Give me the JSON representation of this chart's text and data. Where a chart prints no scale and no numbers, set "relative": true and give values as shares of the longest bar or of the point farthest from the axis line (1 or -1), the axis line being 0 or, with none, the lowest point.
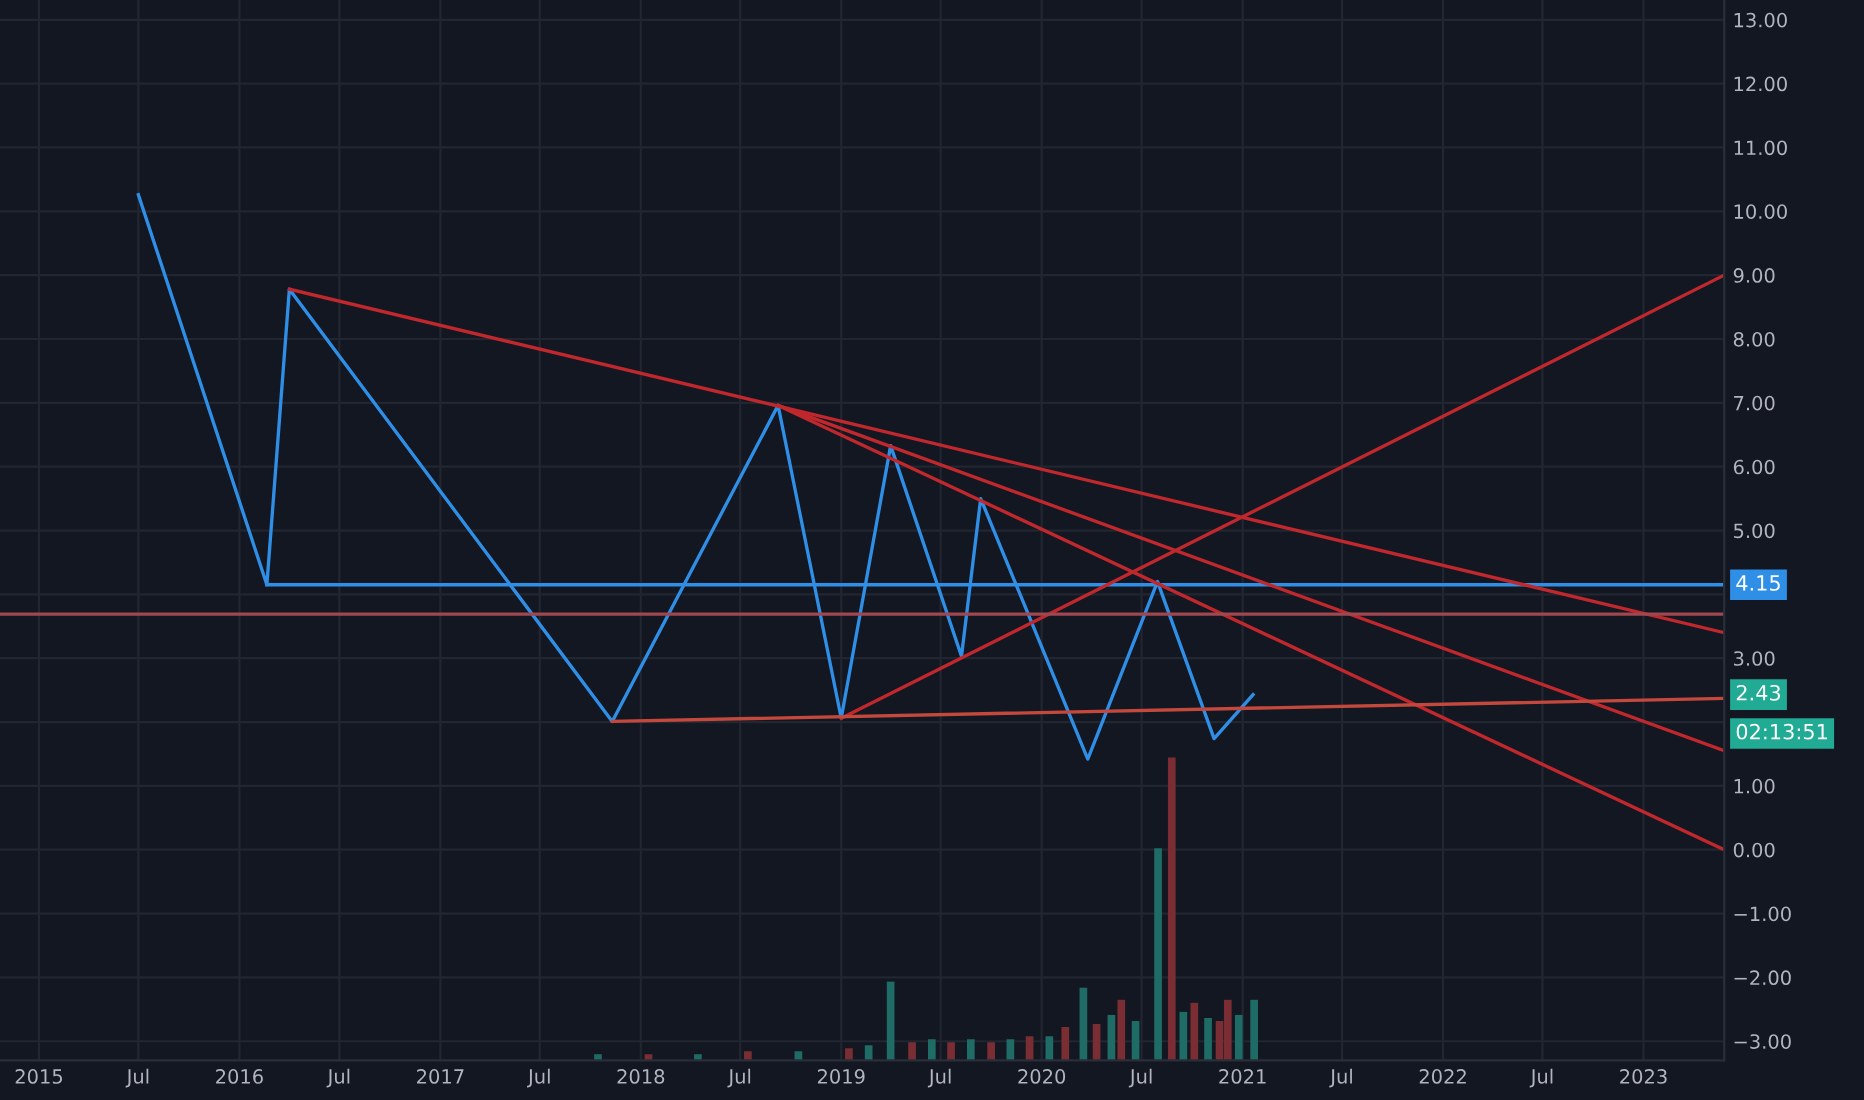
{
  "chart_data": [
    {
      "type": "line",
      "xlim": [
        "2014-10-22",
        "2023-05-28"
      ],
      "ylim": [
        -3.3,
        13.31
      ],
      "xticks": [
        {
          "value": "2015-01",
          "label": "2015"
        },
        {
          "value": "2015-07",
          "label": "Jul"
        },
        {
          "value": "2016-01",
          "label": "2016"
        },
        {
          "value": "2016-07",
          "label": "Jul"
        },
        {
          "value": "2017-01",
          "label": "2017"
        },
        {
          "value": "2017-07",
          "label": "Jul"
        },
        {
          "value": "2018-01",
          "label": "2018"
        },
        {
          "value": "2018-07",
          "label": "Jul"
        },
        {
          "value": "2019-01",
          "label": "2019"
        },
        {
          "value": "2019-07",
          "label": "Jul"
        },
        {
          "value": "2020-01",
          "label": "2020"
        },
        {
          "value": "2020-07",
          "label": "Jul"
        },
        {
          "value": "2021-01",
          "label": "2021"
        },
        {
          "value": "2021-07",
          "label": "Jul"
        },
        {
          "value": "2022-01",
          "label": "2022"
        },
        {
          "value": "2022-07",
          "label": "Jul"
        },
        {
          "value": "2023-01",
          "label": "2023"
        }
      ],
      "yticks": [
        {
          "value": 13,
          "label": "13.00"
        },
        {
          "value": 12,
          "label": "12.00"
        },
        {
          "value": 11,
          "label": "11.00"
        },
        {
          "value": 10,
          "label": "10.00"
        },
        {
          "value": 9,
          "label": "9.00"
        },
        {
          "value": 8,
          "label": "8.00"
        },
        {
          "value": 7,
          "label": "7.00"
        },
        {
          "value": 6,
          "label": "6.00"
        },
        {
          "value": 5,
          "label": "5.00"
        },
        {
          "value": 4,
          "label": null
        },
        {
          "value": 3,
          "label": "3.00"
        },
        {
          "value": 2,
          "label": null
        },
        {
          "value": 1,
          "label": "1.00"
        },
        {
          "value": 0,
          "label": "0.00"
        },
        {
          "value": -1,
          "label": "−1.00"
        },
        {
          "value": -2,
          "label": "−2.00"
        },
        {
          "value": -3,
          "label": "−3.00"
        }
      ],
      "grid": true,
      "legend": false,
      "marker": "none",
      "line_style": "solid",
      "series": [
        {
          "color": "#2f8fe6",
          "x": [
            "2015-07-01",
            "2016-02-20",
            "2016-04-01",
            "2017-11-10",
            "2018-09-08",
            "2019-01-01",
            "2019-04-01",
            "2019-08-08",
            "2019-09-12",
            "2020-03-25",
            "2020-07-30",
            "2020-11-10",
            "2021-01-20"
          ],
          "values": [
            10.26,
            4.15,
            8.78,
            2.01,
            6.96,
            2.06,
            6.33,
            3.03,
            5.5,
            1.42,
            4.2,
            1.74,
            2.43
          ]
        },
        {
          "color": "#2f8fe6",
          "x": [
            "2016-02-20",
            "2023-05-28"
          ],
          "values": [
            4.15,
            4.15
          ]
        },
        {
          "color": "#c0282d",
          "x": [
            "2016-04-01",
            "2023-05-28"
          ],
          "values": [
            8.78,
            3.4
          ]
        },
        {
          "color": "#c0282d",
          "x": [
            "2018-09-08",
            "2023-05-28"
          ],
          "values": [
            6.96,
            1.55
          ]
        },
        {
          "color": "#c0282d",
          "x": [
            "2018-09-08",
            "2023-05-28"
          ],
          "values": [
            6.96,
            0.0
          ]
        },
        {
          "color": "#c0282d",
          "x": [
            "2019-01-01",
            "2023-05-28"
          ],
          "values": [
            2.06,
            9.0
          ]
        },
        {
          "color": "#c4493c",
          "x": [
            "2017-11-10",
            "2023-05-28"
          ],
          "values": [
            2.01,
            2.37
          ]
        }
      ],
      "ref_lines": [
        {
          "axis": "y",
          "value": 3.69,
          "color": "#a0474f"
        }
      ],
      "annotations": [
        {
          "text": "4.15",
          "x": "2023-05-28",
          "y": 4.15
        },
        {
          "text": "2.43",
          "x": "2023-05-28",
          "y": 2.43
        },
        "02:13:51"
      ]
    },
    {
      "type": "bar",
      "relative": true,
      "xlim": [
        "2014-10-22",
        "2023-05-28"
      ],
      "x": [
        "2017-10-15",
        "2018-01-15",
        "2018-04-15",
        "2018-07-15",
        "2018-10-15",
        "2019-01-15",
        "2019-02-20",
        "2019-04-01",
        "2019-05-10",
        "2019-06-15",
        "2019-07-20",
        "2019-08-25",
        "2019-10-01",
        "2019-11-05",
        "2019-12-10",
        "2020-01-15",
        "2020-02-13",
        "2020-03-17",
        "2020-04-10",
        "2020-05-07",
        "2020-05-25",
        "2020-06-20",
        "2020-07-31",
        "2020-08-25",
        "2020-09-15",
        "2020-10-05",
        "2020-10-30",
        "2020-11-20",
        "2020-12-05",
        "2020-12-25",
        "2021-01-22"
      ],
      "values": [
        0.02,
        0.02,
        0.02,
        0.03,
        0.03,
        0.04,
        0.05,
        0.26,
        0.06,
        0.07,
        0.06,
        0.07,
        0.06,
        0.07,
        0.08,
        0.08,
        0.11,
        0.24,
        0.12,
        0.15,
        0.2,
        0.13,
        0.7,
        1.0,
        0.16,
        0.19,
        0.14,
        0.13,
        0.2,
        0.15,
        0.2
      ],
      "colors": [
        "#1f6b66",
        "#7a2e33",
        "#1f6b66",
        "#7a2e33",
        "#1f6b66",
        "#7a2e33",
        "#1f6b66",
        "#1f6b66",
        "#7a2e33",
        "#1f6b66",
        "#7a2e33",
        "#1f6b66",
        "#7a2e33",
        "#1f6b66",
        "#7a2e33",
        "#1f6b66",
        "#7a2e33",
        "#1f6b66",
        "#7a2e33",
        "#1f6b66",
        "#7a2e33",
        "#1f6b66",
        "#1f6b66",
        "#7a2e33",
        "#1f6b66",
        "#7a2e33",
        "#1f6b66",
        "#7a2e33",
        "#7a2e33",
        "#1f6b66",
        "#1f6b66"
      ]
    }
  ]
}
